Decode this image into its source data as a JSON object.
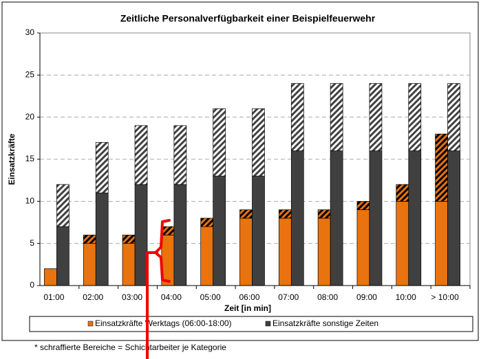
{
  "chart_data": {
    "type": "stacked_grouped_bar",
    "title": "Zeitliche Personalverfügbarkeit einer Beispielfeuerwehr",
    "y_label": "Einsatzkräfte",
    "x_label": "Zeit [in min]",
    "footnote": "* schraffierte Bereiche = Schichtarbeiter je Kategorie",
    "categories": [
      "01:00",
      "02:00",
      "03:00",
      "04:00",
      "05:00",
      "06:00",
      "07:00",
      "08:00",
      "09:00",
      "10:00",
      "> 10:00"
    ],
    "series": [
      {
        "name": "Einsatzkräfte Werktags (06:00-18:00)",
        "color": "#e8730f",
        "hatch_color": "#000000",
        "values": [
          2,
          5,
          5,
          6,
          7,
          8,
          8,
          8,
          9,
          10,
          10
        ],
        "shift_values": [
          0,
          1,
          1,
          1,
          1,
          1,
          1,
          1,
          1,
          2,
          8
        ]
      },
      {
        "name": "Einsatzkräfte sonstige Zeiten",
        "color": "#404040",
        "hatch_color": "#ffffff",
        "values": [
          7,
          11,
          12,
          12,
          13,
          13,
          16,
          16,
          16,
          16,
          16
        ],
        "shift_values": [
          5,
          6,
          7,
          7,
          8,
          8,
          8,
          8,
          8,
          8,
          8
        ]
      }
    ],
    "ylim": [
      0,
      30
    ],
    "yticks": [
      0,
      5,
      10,
      15,
      20,
      25,
      30
    ],
    "grid": true
  }
}
